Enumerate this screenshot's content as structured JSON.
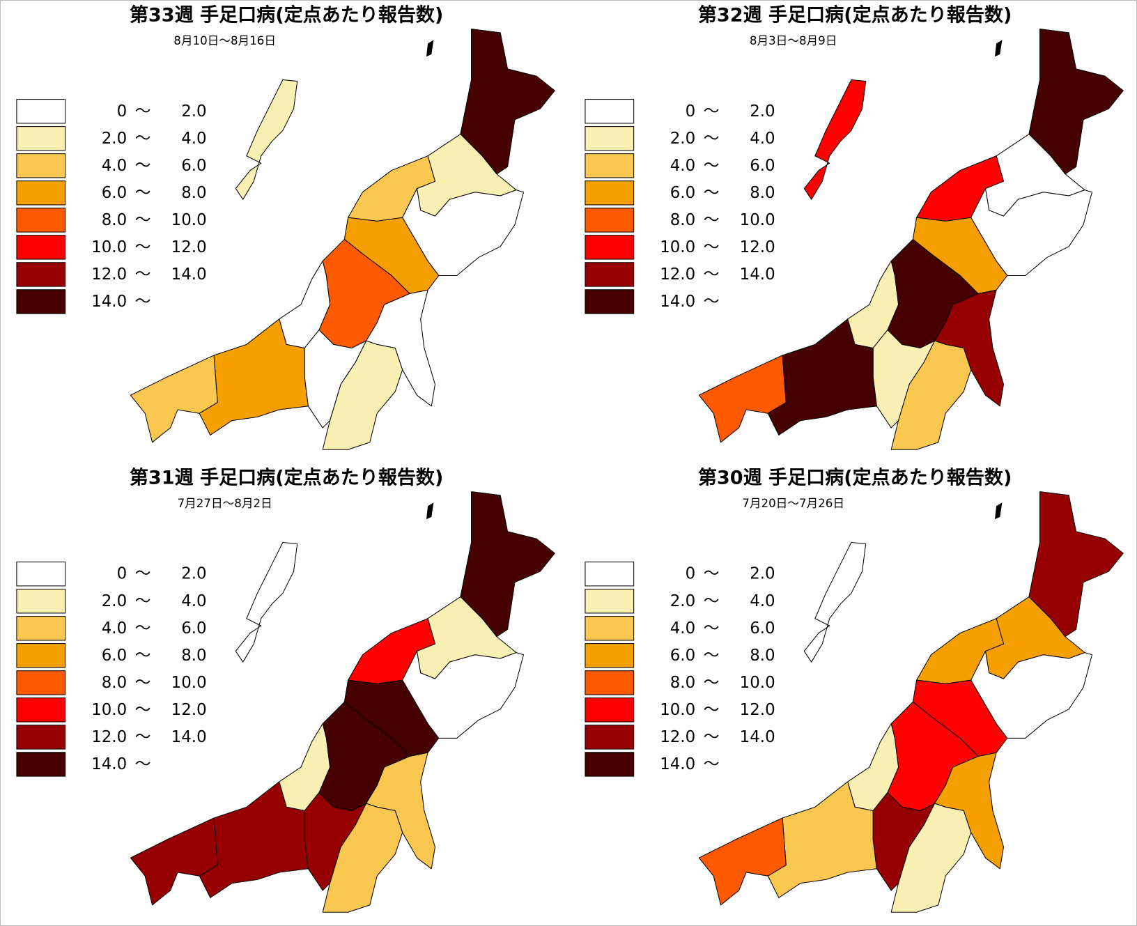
{
  "panels": [
    {
      "title": "第33週 手足口病(定点あたり報告数)",
      "subtitle": "8月10日〜8月16日",
      "region_classes": [
        7,
        1,
        2,
        0,
        3,
        4,
        0,
        0,
        0,
        1,
        3,
        2,
        1
      ]
    },
    {
      "title": "第32週 手足口病(定点あたり報告数)",
      "subtitle": "8月3日〜8月9日",
      "region_classes": [
        7,
        0,
        5,
        0,
        3,
        7,
        1,
        6,
        1,
        2,
        7,
        4,
        5
      ]
    },
    {
      "title": "第31週 手足口病(定点あたり報告数)",
      "subtitle": "7月27日〜8月2日",
      "region_classes": [
        7,
        1,
        5,
        0,
        7,
        7,
        1,
        2,
        6,
        2,
        6,
        6,
        0
      ]
    },
    {
      "title": "第30週 手足口病(定点あたり報告数)",
      "subtitle": "7月20日〜7月26日",
      "region_classes": [
        6,
        3,
        3,
        0,
        5,
        5,
        1,
        3,
        6,
        1,
        2,
        4,
        0
      ]
    }
  ],
  "legend": [
    {
      "color": "#ffffff",
      "range": [
        "0",
        "〜",
        "2.0"
      ]
    },
    {
      "color": "#faf0b4",
      "range": [
        "2.0",
        "〜",
        "4.0"
      ]
    },
    {
      "color": "#fac850",
      "range": [
        "4.0",
        "〜",
        "6.0"
      ]
    },
    {
      "color": "#f5a000",
      "range": [
        "6.0",
        "〜",
        "8.0"
      ]
    },
    {
      "color": "#ff5a00",
      "range": [
        "8.0",
        "〜",
        "10.0"
      ]
    },
    {
      "color": "#ff0000",
      "range": [
        "10.0",
        "〜",
        "12.0"
      ]
    },
    {
      "color": "#960000",
      "range": [
        "12.0",
        "〜",
        "14.0"
      ]
    },
    {
      "color": "#460000",
      "range": [
        "14.0",
        "〜"
      ]
    }
  ]
}
